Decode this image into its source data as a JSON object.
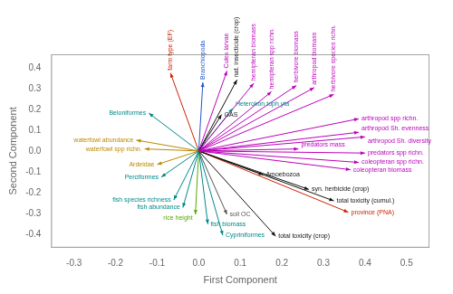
{
  "chart_data": {
    "type": "biplot",
    "xlabel": "First Component",
    "ylabel": "Second Component",
    "series": [
      {
        "name": "farm type (EF)",
        "color": "#cc2200",
        "x": -0.068,
        "y": 0.375
      },
      {
        "name": "Branchiopoda",
        "color": "#2255cc",
        "x": 0.01,
        "y": 0.33
      },
      {
        "name": "Culex larvae",
        "color": "#bb00bb",
        "x": 0.068,
        "y": 0.385
      },
      {
        "name": "nat. insecticide (crop)",
        "color": "#111111",
        "x": 0.092,
        "y": 0.342
      },
      {
        "name": "hemipteran biomass",
        "color": "#bb00bb",
        "x": 0.132,
        "y": 0.325
      },
      {
        "name": "GAS",
        "color": "#111111",
        "x": 0.055,
        "y": 0.175
      },
      {
        "name": "Heterokon toph yta",
        "color": "#008888",
        "x": 0.082,
        "y": 0.205
      },
      {
        "name": "hemipteran spp richn.",
        "color": "#bb00bb",
        "x": 0.175,
        "y": 0.285
      },
      {
        "name": "herbivore biomass",
        "color": "#bb00bb",
        "x": 0.235,
        "y": 0.315
      },
      {
        "name": "arthropod biomass",
        "color": "#bb00bb",
        "x": 0.278,
        "y": 0.305
      },
      {
        "name": "herbivore species richn.",
        "color": "#bb00bb",
        "x": 0.325,
        "y": 0.272
      },
      {
        "name": "arthropod spp richn.",
        "color": "#bb00bb",
        "x": 0.385,
        "y": 0.155
      },
      {
        "name": "arthropod Sh. evenness",
        "color": "#bb00bb",
        "x": 0.385,
        "y": 0.09
      },
      {
        "name": "arthropod Sh. diversity",
        "color": "#bb00bb",
        "x": 0.4,
        "y": 0.068
      },
      {
        "name": "predators mass",
        "color": "#bb00bb",
        "x": 0.24,
        "y": 0.01
      },
      {
        "name": "predators spp richn.",
        "color": "#bb00bb",
        "x": 0.4,
        "y": -0.01
      },
      {
        "name": "coleopteran spp richn.",
        "color": "#bb00bb",
        "x": 0.385,
        "y": -0.055
      },
      {
        "name": "coleopteran biomass",
        "color": "#bb00bb",
        "x": 0.365,
        "y": -0.09
      },
      {
        "name": "Amoebozoa",
        "color": "#111111",
        "x": 0.155,
        "y": -0.115
      },
      {
        "name": "syn. herbicide (crop)",
        "color": "#111111",
        "x": 0.265,
        "y": -0.185
      },
      {
        "name": "total toxicity (cumul.)",
        "color": "#111111",
        "x": 0.325,
        "y": -0.24
      },
      {
        "name": "province (PNA)",
        "color": "#cc2200",
        "x": 0.36,
        "y": -0.295
      },
      {
        "name": "total toxicity (crop)",
        "color": "#111111",
        "x": 0.185,
        "y": -0.41
      },
      {
        "name": "soil OC",
        "color": "#555555",
        "x": 0.068,
        "y": -0.305
      },
      {
        "name": "Cypriniformes",
        "color": "#008888",
        "x": 0.058,
        "y": -0.405
      },
      {
        "name": "fish biomass",
        "color": "#008888",
        "x": 0.022,
        "y": -0.352
      },
      {
        "name": "rice height",
        "color": "#55aa00",
        "x": -0.008,
        "y": -0.305
      },
      {
        "name": "fish abundance",
        "color": "#008888",
        "x": -0.038,
        "y": -0.272
      },
      {
        "name": "fish species richness",
        "color": "#008888",
        "x": -0.06,
        "y": -0.235
      },
      {
        "name": "Perciformes",
        "color": "#008888",
        "x": -0.09,
        "y": -0.125
      },
      {
        "name": "Ardeidae",
        "color": "#bb8800",
        "x": -0.1,
        "y": -0.065
      },
      {
        "name": "waterfowl spp richn.",
        "color": "#bb8800",
        "x": -0.13,
        "y": 0.01
      },
      {
        "name": "waterfowl abundance",
        "color": "#bb8800",
        "x": -0.15,
        "y": 0.052
      },
      {
        "name": "Beloniformes",
        "color": "#008888",
        "x": -0.12,
        "y": 0.182
      }
    ],
    "xlim": [
      -0.355,
      0.555
    ],
    "ylim": [
      -0.465,
      0.465
    ],
    "xticks": [
      -0.3,
      -0.2,
      -0.1,
      {
        "value": 0.0,
        "label": "0.0"
      },
      0.1,
      0.2,
      0.3,
      0.4,
      0.5
    ],
    "yticks": [
      -0.4,
      -0.3,
      -0.2,
      -0.1,
      {
        "value": 0.0,
        "label": "0.0"
      },
      0.1,
      0.2,
      0.3,
      0.4
    ],
    "grid": false
  }
}
